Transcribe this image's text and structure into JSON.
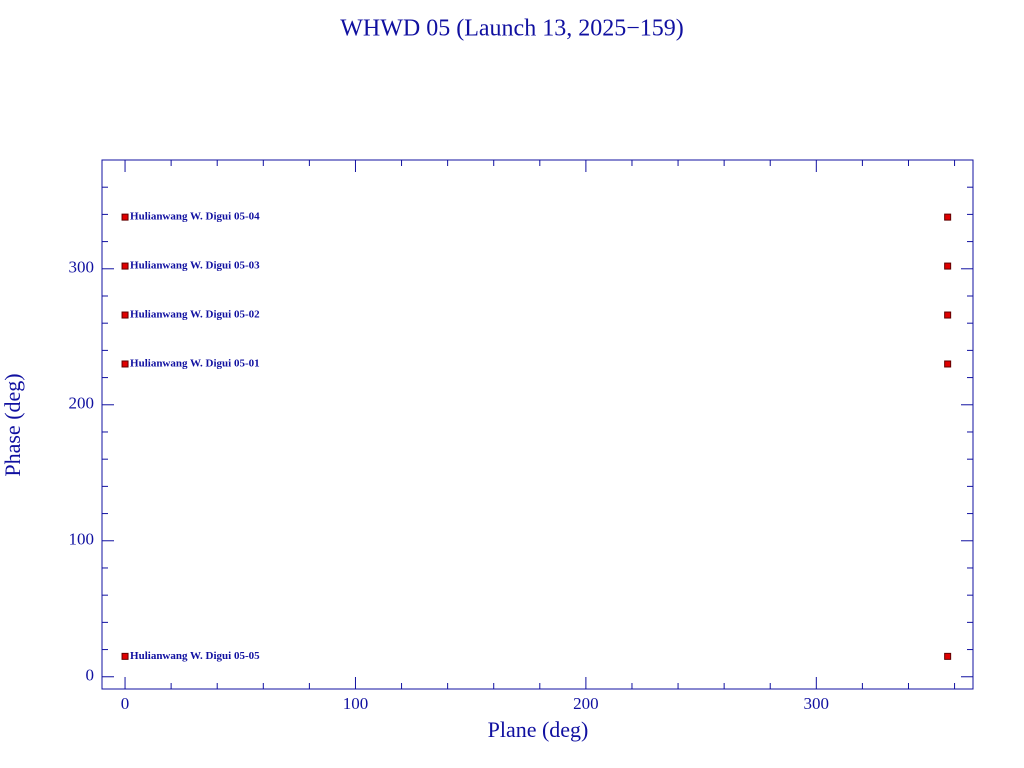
{
  "chart_data": {
    "type": "scatter",
    "title": "WHWD 05 (Launch 13, 2025−159)",
    "x_label": "Plane (deg)",
    "y_label": "Phase (deg)",
    "xlim": [
      -10,
      368
    ],
    "ylim": [
      -9,
      380
    ],
    "xticks": [
      0,
      100,
      200,
      300
    ],
    "yticks": [
      0,
      100,
      200,
      300
    ],
    "xminorticks": [
      20,
      40,
      60,
      80,
      120,
      140,
      160,
      180,
      220,
      240,
      260,
      280,
      320,
      340,
      360
    ],
    "yminorticks": [
      20,
      40,
      60,
      80,
      120,
      140,
      160,
      180,
      220,
      240,
      260,
      280,
      320,
      340,
      360
    ],
    "series": [
      {
        "name": "Hulianwang W. Digui 05-04",
        "color": "#e00000",
        "x": [
          0,
          357
        ],
        "values": [
          338,
          338
        ]
      },
      {
        "name": "Hulianwang W. Digui 05-03",
        "color": "#e00000",
        "x": [
          0,
          357
        ],
        "values": [
          302,
          302
        ]
      },
      {
        "name": "Hulianwang W. Digui 05-02",
        "color": "#e00000",
        "x": [
          0,
          357
        ],
        "values": [
          266,
          266
        ]
      },
      {
        "name": "Hulianwang W. Digui 05-01",
        "color": "#e00000",
        "x": [
          0,
          357
        ],
        "values": [
          230,
          230
        ]
      },
      {
        "name": "Hulianwang W. Digui 05-05",
        "color": "#e00000",
        "x": [
          0,
          357
        ],
        "values": [
          15,
          15
        ]
      }
    ]
  }
}
